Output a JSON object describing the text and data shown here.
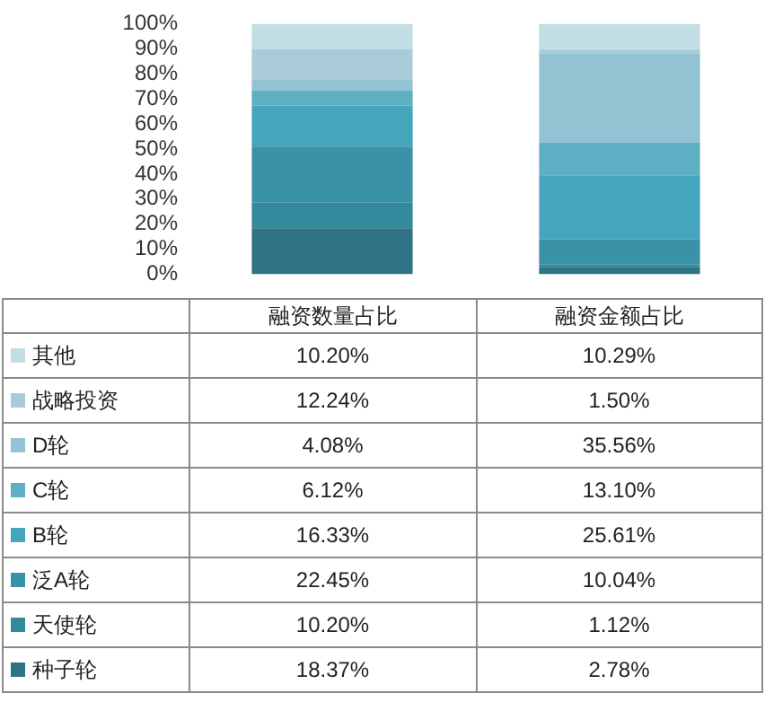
{
  "chart_data": {
    "type": "bar",
    "stacked": true,
    "categories": [
      "融资数量占比",
      "融资金额占比"
    ],
    "ylim": [
      0,
      100
    ],
    "yticks": [
      {
        "value": 0,
        "label": "0%"
      },
      {
        "value": 10,
        "label": "10%"
      },
      {
        "value": 20,
        "label": "20%"
      },
      {
        "value": 30,
        "label": "30%"
      },
      {
        "value": 40,
        "label": "40%"
      },
      {
        "value": 50,
        "label": "50%"
      },
      {
        "value": 60,
        "label": "60%"
      },
      {
        "value": 70,
        "label": "70%"
      },
      {
        "value": 80,
        "label": "80%"
      },
      {
        "value": 90,
        "label": "90%"
      },
      {
        "value": 100,
        "label": "100%"
      }
    ],
    "grid": false,
    "legend": "bottom",
    "series": [
      {
        "name": "种子轮",
        "color": "#2f7385",
        "values": [
          18.37,
          2.78
        ],
        "value_labels": [
          "18.37%",
          "2.78%"
        ]
      },
      {
        "name": "天使轮",
        "color": "#348a9c",
        "values": [
          10.2,
          1.12
        ],
        "value_labels": [
          "10.20%",
          "1.12%"
        ]
      },
      {
        "name": "泛A轮",
        "color": "#3992a8",
        "values": [
          22.45,
          10.04
        ],
        "value_labels": [
          "22.45%",
          "10.04%"
        ]
      },
      {
        "name": "B轮",
        "color": "#45a5bd",
        "values": [
          16.33,
          25.61
        ],
        "value_labels": [
          "16.33%",
          "25.61%"
        ]
      },
      {
        "name": "C轮",
        "color": "#5fafc4",
        "values": [
          6.12,
          13.1
        ],
        "value_labels": [
          "6.12%",
          "13.10%"
        ]
      },
      {
        "name": "D轮",
        "color": "#93c2d3",
        "values": [
          4.08,
          35.56
        ],
        "value_labels": [
          "4.08%",
          "35.56%"
        ]
      },
      {
        "name": "战略投资",
        "color": "#a9cbd8",
        "values": [
          12.24,
          1.5
        ],
        "value_labels": [
          "12.24%",
          "1.50%"
        ]
      },
      {
        "name": "其他",
        "color": "#c3dde5",
        "values": [
          10.2,
          10.29
        ],
        "value_labels": [
          "10.20%",
          "10.29%"
        ]
      }
    ]
  }
}
